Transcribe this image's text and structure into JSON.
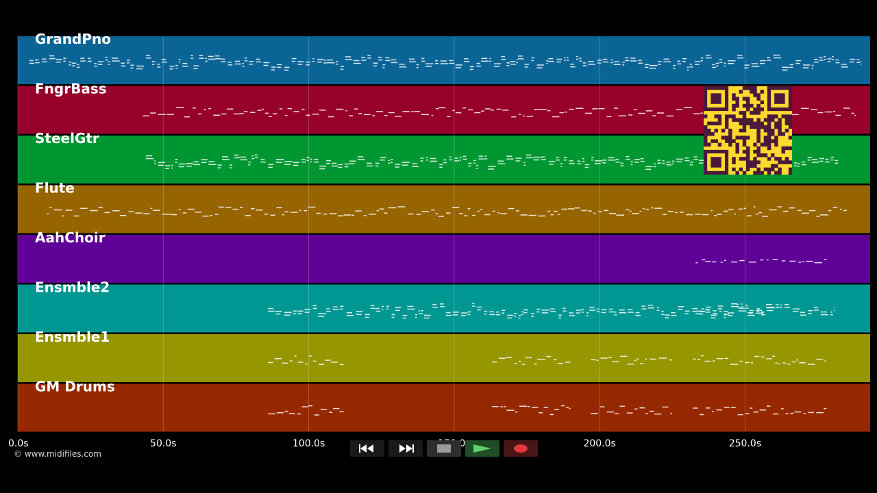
{
  "tracks": [
    {
      "name": "GrandPno",
      "color": "#0b6496"
    },
    {
      "name": "FngrBass",
      "color": "#96002b"
    },
    {
      "name": "SteelGtr",
      "color": "#009632"
    },
    {
      "name": "Flute",
      "color": "#966400"
    },
    {
      "name": "AahChoir",
      "color": "#5f0096"
    },
    {
      "name": "Ensmble2",
      "color": "#009691"
    },
    {
      "name": "Ensmble1",
      "color": "#969600"
    },
    {
      "name": "GM Drums",
      "color": "#962800"
    }
  ],
  "timeline": {
    "unit": "s",
    "range": [
      0,
      293
    ],
    "ticks": [
      {
        "value": 0,
        "label": "0.0s"
      },
      {
        "value": 50,
        "label": "50.0s"
      },
      {
        "value": 100,
        "label": "100.0s"
      },
      {
        "value": 150,
        "label": "150.0s"
      },
      {
        "value": 200,
        "label": "200.0s"
      },
      {
        "value": 250,
        "label": "250.0s"
      }
    ]
  },
  "transport": {
    "rewind": {
      "icon": "rewind-icon"
    },
    "fast_forward": {
      "icon": "fast-forward-icon"
    },
    "stop": {
      "icon": "stop-icon"
    },
    "play": {
      "icon": "play-icon",
      "color": "#5fd06a"
    },
    "record": {
      "icon": "record-icon",
      "color": "#e03a3a"
    }
  },
  "footer": {
    "copyright": "© www.midifiles.com"
  },
  "overlay": {
    "qr_code": "qr-code-icon",
    "color": "#ffd930"
  }
}
